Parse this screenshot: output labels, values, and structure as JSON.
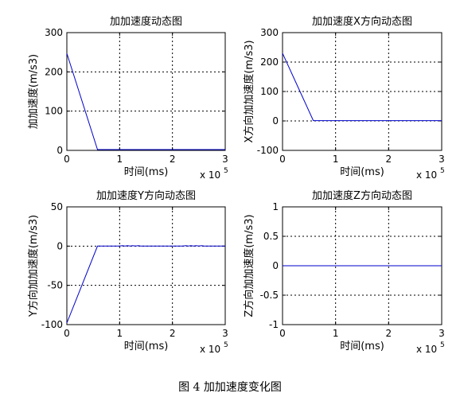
{
  "caption": "图 4  加加速度变化图",
  "chart_data": [
    {
      "type": "line",
      "title": "加加速度动态图",
      "xlabel": "时间(ms)",
      "ylabel": "加加速度(m/s3)",
      "x_multiplier": "x 10",
      "x_multiplier_exp": "5",
      "xlim": [
        0,
        3
      ],
      "ylim": [
        0,
        300
      ],
      "xticks": [
        "0",
        "1",
        "2",
        "3"
      ],
      "yticks": [
        "0",
        "100",
        "200",
        "300"
      ],
      "grid": true,
      "series": [
        {
          "x": [
            0,
            0.58,
            3
          ],
          "y": [
            247,
            2,
            2
          ]
        }
      ]
    },
    {
      "type": "line",
      "title": "加加速度X方向动态图",
      "xlabel": "时间(ms)",
      "ylabel": "X方向加加速度(m/s3)",
      "x_multiplier": "x 10",
      "x_multiplier_exp": "5",
      "xlim": [
        0,
        3
      ],
      "ylim": [
        -100,
        300
      ],
      "xticks": [
        "0",
        "1",
        "2",
        "3"
      ],
      "yticks": [
        "-100",
        "0",
        "100",
        "200",
        "300"
      ],
      "grid": true,
      "series": [
        {
          "x": [
            0,
            0.58,
            3
          ],
          "y": [
            230,
            1,
            1
          ]
        }
      ]
    },
    {
      "type": "line",
      "title": "加加速度Y方向动态图",
      "xlabel": "时间(ms)",
      "ylabel": "Y方向加加速度(m/s3)",
      "x_multiplier": "x 10",
      "x_multiplier_exp": "5",
      "xlim": [
        0,
        3
      ],
      "ylim": [
        -100,
        50
      ],
      "xticks": [
        "0",
        "1",
        "2",
        "3"
      ],
      "yticks": [
        "-100",
        "-50",
        "0",
        "50"
      ],
      "grid": true,
      "series": [
        {
          "x": [
            0,
            0.58,
            1.0,
            1.05,
            1.1,
            1.15,
            1.2,
            1.25,
            1.3,
            1.35,
            1.4,
            2.2,
            2.25,
            2.3,
            2.35,
            2.4,
            2.45,
            2.5,
            2.55,
            2.6,
            3
          ],
          "y": [
            -98,
            0,
            0,
            0.6,
            0,
            0.6,
            0,
            0.6,
            0,
            0.6,
            0,
            0,
            0.6,
            0,
            0.6,
            0,
            0.6,
            0,
            0.6,
            0,
            0
          ]
        }
      ]
    },
    {
      "type": "line",
      "title": "加加速度Z方向动态图",
      "xlabel": "时间(ms)",
      "ylabel": "Z方向加加速度(m/s3)",
      "x_multiplier": "x 10",
      "x_multiplier_exp": "5",
      "xlim": [
        0,
        3
      ],
      "ylim": [
        -1,
        1
      ],
      "xticks": [
        "0",
        "1",
        "2",
        "3"
      ],
      "yticks": [
        "-1",
        "-0.5",
        "0",
        "0.5",
        "1"
      ],
      "grid": true,
      "series": [
        {
          "x": [
            0,
            3
          ],
          "y": [
            0,
            0
          ]
        }
      ]
    }
  ],
  "colors": {
    "line": "#0000cc",
    "axes": "#000000",
    "grid": "#000000"
  }
}
